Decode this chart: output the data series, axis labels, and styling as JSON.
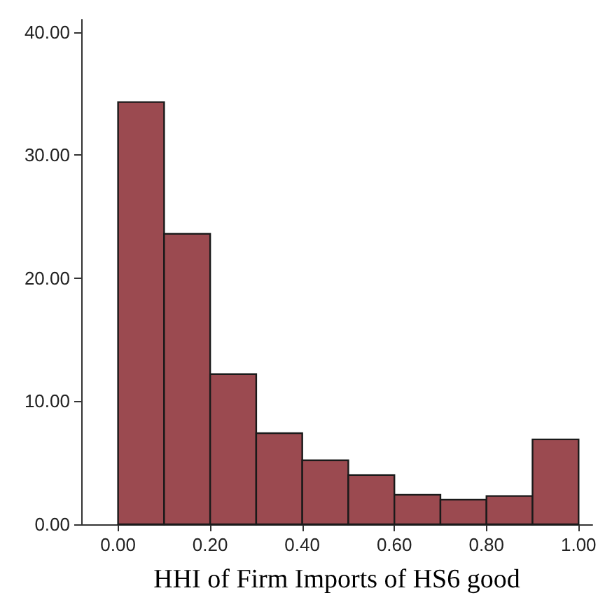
{
  "chart_data": {
    "type": "histogram",
    "xlabel": "HHI of Firm Imports of HS6 good",
    "bins": [
      0,
      0.1,
      0.2,
      0.3,
      0.4,
      0.5,
      0.6,
      0.7,
      0.8,
      0.9,
      1.0
    ],
    "values": [
      34.3,
      23.6,
      12.2,
      7.4,
      5.2,
      4.0,
      2.4,
      2.0,
      2.3,
      6.9
    ],
    "color": "#9b4a50",
    "xlim": [
      -0.08,
      1.03
    ],
    "xticks": [
      {
        "value": 0,
        "label": "0.00"
      },
      {
        "value": 0.2,
        "label": "0.20"
      },
      {
        "value": 0.4,
        "label": "0.40"
      },
      {
        "value": 0.6,
        "label": "0.60"
      },
      {
        "value": 0.8,
        "label": "0.80"
      },
      {
        "value": 1.0,
        "label": "1.00"
      }
    ],
    "ylim": [
      0,
      41
    ],
    "yticks": [
      {
        "value": 0,
        "label": "0.00"
      },
      {
        "value": 10,
        "label": "10.00"
      },
      {
        "value": 20,
        "label": "20.00"
      },
      {
        "value": 30,
        "label": "30.00"
      },
      {
        "value": 40,
        "label": "40.00"
      }
    ]
  }
}
